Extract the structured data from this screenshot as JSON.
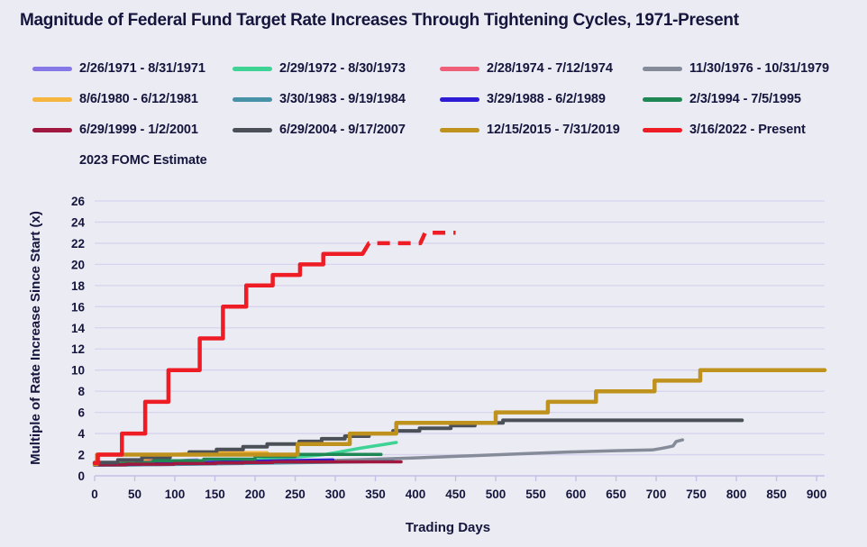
{
  "title": "Magnitude of Federal Fund Target Rate Increases Through Tightening Cycles, 1971-Present",
  "colors": {
    "background": "#ebebf3",
    "text": "#15153d",
    "gridline": "#d7d3ee",
    "axis_line": "#c4bfe6"
  },
  "legend": {
    "items": [
      {
        "label": "2/26/1971 - 8/31/1971",
        "color": "#8778e8",
        "dashed": false,
        "row": 0,
        "col": 0
      },
      {
        "label": "2/29/1972 - 8/30/1973",
        "color": "#3ed394",
        "dashed": false,
        "row": 0,
        "col": 1
      },
      {
        "label": "2/28/1974 - 7/12/1974",
        "color": "#ef5f7a",
        "dashed": false,
        "row": 0,
        "col": 2
      },
      {
        "label": "11/30/1976 - 10/31/1979",
        "color": "#858b99",
        "dashed": false,
        "row": 0,
        "col": 3
      },
      {
        "label": "8/6/1980 - 6/12/1981",
        "color": "#f6b53e",
        "dashed": false,
        "row": 1,
        "col": 0
      },
      {
        "label": "3/30/1983 - 9/19/1984",
        "color": "#4792a6",
        "dashed": false,
        "row": 1,
        "col": 1
      },
      {
        "label": "3/29/1988 - 6/2/1989",
        "color": "#2d1bd6",
        "dashed": false,
        "row": 1,
        "col": 2
      },
      {
        "label": "2/3/1994 - 7/5/1995",
        "color": "#1f8754",
        "dashed": false,
        "row": 1,
        "col": 3
      },
      {
        "label": "6/29/1999 - 1/2/2001",
        "color": "#a0183f",
        "dashed": false,
        "row": 2,
        "col": 0
      },
      {
        "label": "6/29/2004 - 9/17/2007",
        "color": "#4b4f58",
        "dashed": false,
        "row": 2,
        "col": 1
      },
      {
        "label": "12/15/2015 - 7/31/2019",
        "color": "#bf921e",
        "dashed": false,
        "row": 2,
        "col": 2
      },
      {
        "label": "3/16/2022 - Present",
        "color": "#ee1c25",
        "dashed": false,
        "row": 2,
        "col": 3
      },
      {
        "label": "2023 FOMC Estimate",
        "color": "#ee1c25",
        "dashed": true,
        "row": 3,
        "col": 0
      }
    ]
  },
  "chart_data": {
    "type": "line",
    "title": "Magnitude of Federal Fund Target Rate Increases Through Tightening Cycles, 1971-Present",
    "xlabel": "Trading Days",
    "ylabel": "Multiple of Rate Increase Since Start (x)",
    "xlim": [
      0,
      910
    ],
    "ylim": [
      0,
      26
    ],
    "x_ticks": [
      0,
      50,
      100,
      150,
      200,
      250,
      300,
      350,
      400,
      450,
      500,
      550,
      600,
      650,
      700,
      750,
      800,
      850,
      900
    ],
    "y_ticks": [
      0,
      2,
      4,
      6,
      8,
      10,
      12,
      14,
      16,
      18,
      20,
      22,
      24,
      26
    ],
    "grid": "horizontal-only",
    "legend_position": "top",
    "series": [
      {
        "name": "2/26/1971 - 8/31/1971",
        "color": "#8778e8",
        "width": 3.5,
        "dashed": false,
        "points": [
          [
            0,
            1.0
          ],
          [
            25,
            1.04
          ],
          [
            50,
            1.12
          ],
          [
            75,
            1.25
          ],
          [
            100,
            1.4
          ],
          [
            115,
            1.47
          ],
          [
            128,
            1.5
          ]
        ]
      },
      {
        "name": "2/29/1972 - 8/30/1973",
        "color": "#3ed394",
        "width": 3.5,
        "dashed": false,
        "points": [
          [
            0,
            1.0
          ],
          [
            60,
            1.05
          ],
          [
            120,
            1.15
          ],
          [
            170,
            1.32
          ],
          [
            210,
            1.55
          ],
          [
            245,
            1.75
          ],
          [
            270,
            1.88
          ],
          [
            286,
            2.0
          ],
          [
            305,
            2.25
          ],
          [
            330,
            2.6
          ],
          [
            355,
            2.9
          ],
          [
            376,
            3.15
          ]
        ]
      },
      {
        "name": "2/28/1974 - 7/12/1974",
        "color": "#ef5f7a",
        "width": 3.5,
        "dashed": false,
        "points": [
          [
            0,
            1.03
          ],
          [
            20,
            1.12
          ],
          [
            40,
            1.24
          ],
          [
            60,
            1.34
          ],
          [
            80,
            1.42
          ],
          [
            94,
            1.45
          ]
        ]
      },
      {
        "name": "11/30/1976 - 10/31/1979",
        "color": "#858b99",
        "width": 3.5,
        "dashed": false,
        "points": [
          [
            0,
            1.0
          ],
          [
            80,
            1.06
          ],
          [
            160,
            1.18
          ],
          [
            240,
            1.33
          ],
          [
            320,
            1.5
          ],
          [
            400,
            1.7
          ],
          [
            470,
            1.9
          ],
          [
            530,
            2.08
          ],
          [
            590,
            2.25
          ],
          [
            650,
            2.38
          ],
          [
            695,
            2.45
          ],
          [
            706,
            2.58
          ],
          [
            714,
            2.7
          ],
          [
            721,
            2.82
          ],
          [
            725,
            3.25
          ],
          [
            733,
            3.4
          ]
        ]
      },
      {
        "name": "8/6/1980 - 6/12/1981",
        "color": "#f6b53e",
        "width": 3.5,
        "dashed": false,
        "points": [
          [
            0,
            1.05
          ],
          [
            15,
            1.1
          ],
          [
            35,
            1.25
          ],
          [
            55,
            1.5
          ],
          [
            75,
            1.75
          ],
          [
            95,
            1.98
          ],
          [
            115,
            2.1
          ],
          [
            135,
            2.18
          ],
          [
            170,
            2.2
          ],
          [
            215,
            2.2
          ]
        ]
      },
      {
        "name": "3/30/1983 - 9/19/1984",
        "color": "#4792a6",
        "width": 3.5,
        "dashed": false,
        "points": [
          [
            0,
            1.0
          ],
          [
            50,
            1.03
          ],
          [
            110,
            1.09
          ],
          [
            170,
            1.15
          ],
          [
            230,
            1.21
          ],
          [
            290,
            1.28
          ],
          [
            330,
            1.32
          ],
          [
            372,
            1.38
          ]
        ]
      },
      {
        "name": "3/29/1988 - 6/2/1989",
        "color": "#2d1bd6",
        "width": 3.5,
        "dashed": false,
        "points": [
          [
            0,
            1.02
          ],
          [
            50,
            1.1
          ],
          [
            100,
            1.19
          ],
          [
            150,
            1.28
          ],
          [
            200,
            1.37
          ],
          [
            250,
            1.45
          ],
          [
            297,
            1.5
          ]
        ]
      },
      {
        "name": "2/3/1994 - 7/5/1995",
        "color": "#1f8754",
        "width": 3.5,
        "dashed": false,
        "points": [
          [
            0,
            1.08
          ],
          [
            33,
            1.08
          ],
          [
            33,
            1.17
          ],
          [
            52,
            1.17
          ],
          [
            52,
            1.25
          ],
          [
            73,
            1.25
          ],
          [
            73,
            1.42
          ],
          [
            136,
            1.42
          ],
          [
            136,
            1.58
          ],
          [
            200,
            1.58
          ],
          [
            200,
            1.83
          ],
          [
            250,
            1.83
          ],
          [
            250,
            2.02
          ],
          [
            357,
            2.02
          ]
        ]
      },
      {
        "name": "6/29/1999 - 1/2/2001",
        "color": "#a0183f",
        "width": 3.5,
        "dashed": false,
        "points": [
          [
            0,
            1.05
          ],
          [
            39,
            1.05
          ],
          [
            39,
            1.1
          ],
          [
            99,
            1.1
          ],
          [
            99,
            1.16
          ],
          [
            151,
            1.16
          ],
          [
            151,
            1.21
          ],
          [
            185,
            1.21
          ],
          [
            185,
            1.26
          ],
          [
            222,
            1.26
          ],
          [
            222,
            1.32
          ],
          [
            382,
            1.32
          ]
        ]
      },
      {
        "name": "6/29/2004 - 9/17/2007",
        "color": "#4b4f58",
        "width": 4,
        "dashed": false,
        "points": [
          [
            0,
            1.25
          ],
          [
            29,
            1.25
          ],
          [
            29,
            1.5
          ],
          [
            59,
            1.5
          ],
          [
            59,
            1.75
          ],
          [
            94,
            1.75
          ],
          [
            94,
            2.0
          ],
          [
            118,
            2.0
          ],
          [
            118,
            2.25
          ],
          [
            152,
            2.25
          ],
          [
            152,
            2.5
          ],
          [
            185,
            2.5
          ],
          [
            185,
            2.75
          ],
          [
            215,
            2.75
          ],
          [
            215,
            3.0
          ],
          [
            255,
            3.0
          ],
          [
            255,
            3.25
          ],
          [
            283,
            3.25
          ],
          [
            283,
            3.5
          ],
          [
            312,
            3.5
          ],
          [
            312,
            3.75
          ],
          [
            342,
            3.75
          ],
          [
            342,
            4.0
          ],
          [
            372,
            4.0
          ],
          [
            372,
            4.25
          ],
          [
            405,
            4.25
          ],
          [
            405,
            4.5
          ],
          [
            444,
            4.5
          ],
          [
            444,
            4.75
          ],
          [
            474,
            4.75
          ],
          [
            474,
            5.0
          ],
          [
            509,
            5.0
          ],
          [
            509,
            5.25
          ],
          [
            807,
            5.25
          ]
        ]
      },
      {
        "name": "12/15/2015 - 7/31/2019",
        "color": "#bf921e",
        "width": 4.5,
        "dashed": false,
        "points": [
          [
            0,
            1.1
          ],
          [
            3,
            1.1
          ],
          [
            3,
            2
          ],
          [
            253,
            2
          ],
          [
            253,
            3
          ],
          [
            318,
            3
          ],
          [
            318,
            4
          ],
          [
            376,
            4
          ],
          [
            376,
            5
          ],
          [
            500,
            5
          ],
          [
            500,
            6
          ],
          [
            565,
            6
          ],
          [
            565,
            7
          ],
          [
            625,
            7
          ],
          [
            625,
            8
          ],
          [
            698,
            8
          ],
          [
            698,
            9
          ],
          [
            755,
            9
          ],
          [
            755,
            10
          ],
          [
            910,
            10
          ]
        ]
      },
      {
        "name": "3/16/2022 - Present",
        "color": "#ee1c25",
        "width": 4.5,
        "dashed": false,
        "points": [
          [
            0,
            1.2
          ],
          [
            4,
            1.2
          ],
          [
            4,
            2
          ],
          [
            34,
            2
          ],
          [
            34,
            4
          ],
          [
            63,
            4
          ],
          [
            63,
            7
          ],
          [
            92,
            7
          ],
          [
            92,
            10
          ],
          [
            131,
            10
          ],
          [
            131,
            13
          ],
          [
            160,
            13
          ],
          [
            160,
            16
          ],
          [
            189,
            16
          ],
          [
            189,
            18
          ],
          [
            222,
            18
          ],
          [
            222,
            19
          ],
          [
            256,
            19
          ],
          [
            256,
            20
          ],
          [
            285,
            20
          ],
          [
            285,
            21
          ],
          [
            334,
            21
          ]
        ]
      },
      {
        "name": "2023 FOMC Estimate",
        "color": "#ee1c25",
        "width": 4.5,
        "dashed": true,
        "points": [
          [
            334,
            21
          ],
          [
            342,
            22
          ],
          [
            406,
            22
          ],
          [
            412,
            23
          ],
          [
            450,
            23
          ]
        ]
      }
    ]
  }
}
